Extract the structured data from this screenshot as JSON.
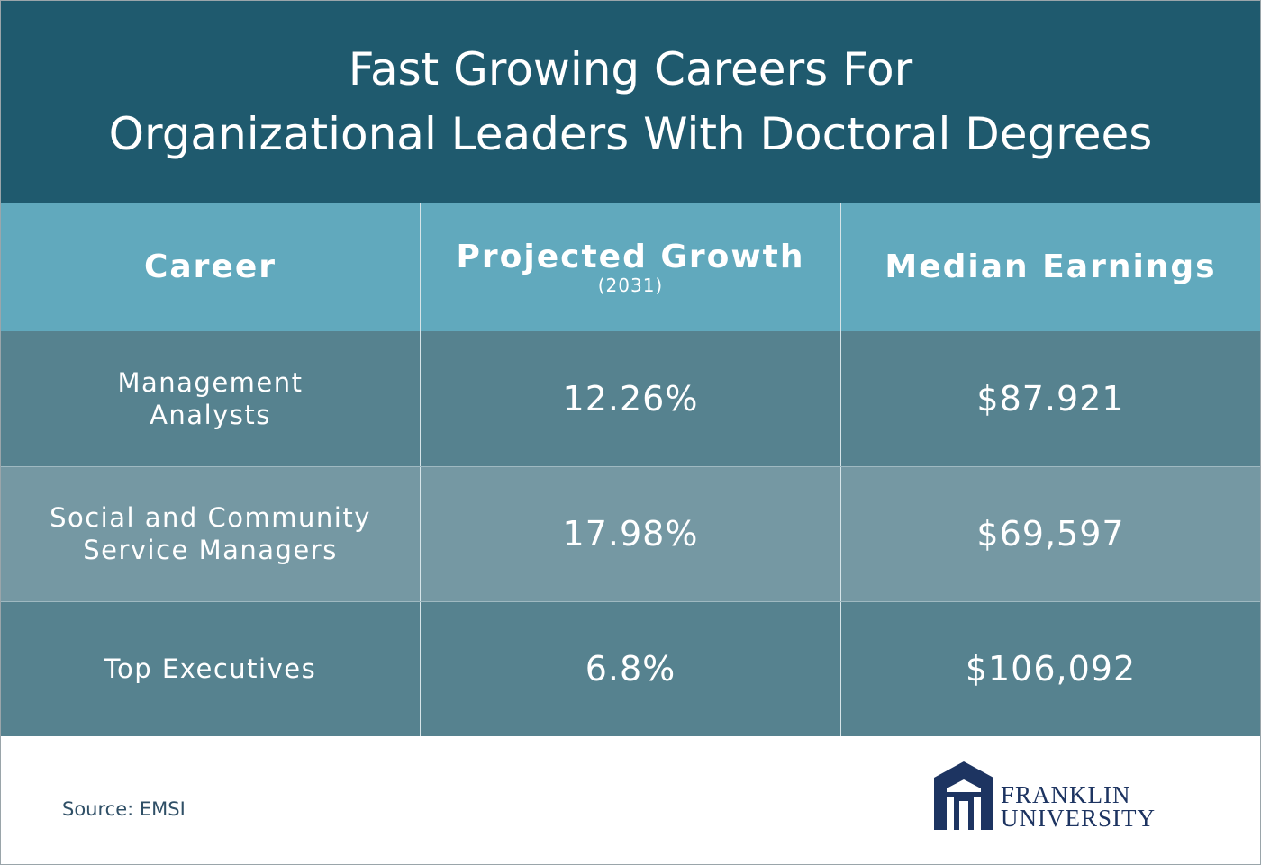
{
  "header": {
    "title_lines": [
      "Fast Growing Careers For",
      "Organizational Leaders With Doctoral Degrees"
    ]
  },
  "table": {
    "columns": [
      {
        "label": "Career"
      },
      {
        "label": "Projected Growth",
        "sublabel": "(2031)"
      },
      {
        "label": "Median Earnings"
      }
    ],
    "rows": [
      {
        "career": [
          "Management",
          "Analysts"
        ],
        "growth": "12.26%",
        "earnings": "$87.921"
      },
      {
        "career": [
          "Social and Community",
          "Service Managers"
        ],
        "growth": "17.98%",
        "earnings": "$69,597"
      },
      {
        "career": [
          "Top Executives"
        ],
        "growth": "6.8%",
        "earnings": "$106,092"
      }
    ]
  },
  "footer": {
    "source": "Source: EMSI",
    "logo_lines": [
      "FRANKLIN",
      "UNIVERSITY"
    ]
  }
}
